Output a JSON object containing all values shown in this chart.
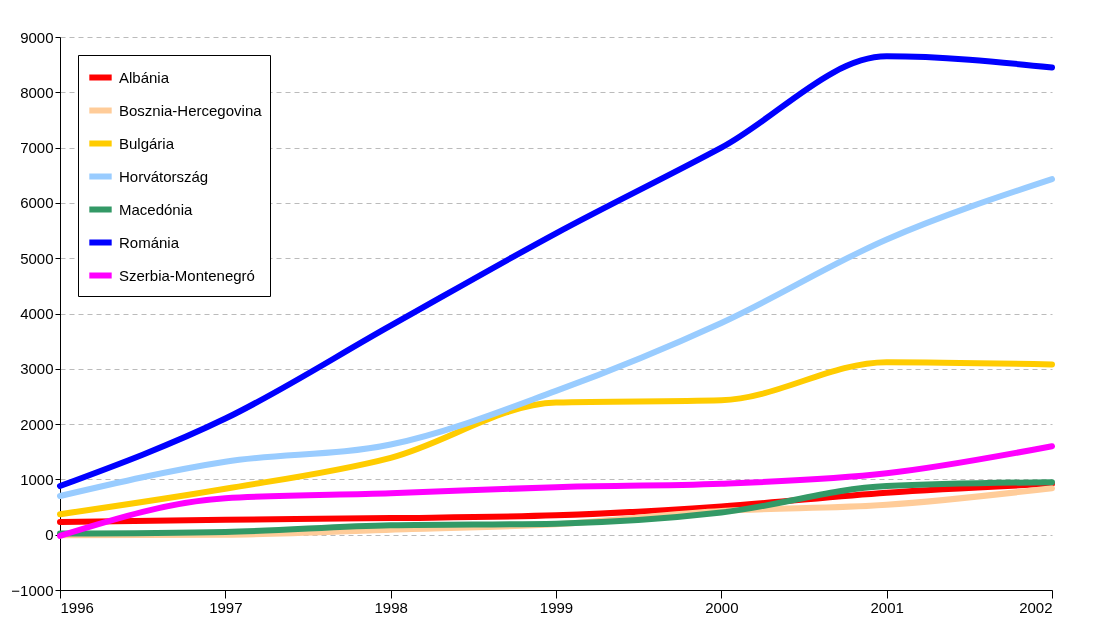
{
  "chart_data": {
    "type": "line",
    "x": [
      1996,
      1997,
      1998,
      1999,
      2000,
      2001,
      2002
    ],
    "xlim": [
      1996,
      2002
    ],
    "xticks": [
      1996,
      1997,
      1998,
      1999,
      2000,
      2001,
      2002
    ],
    "ylim": [
      -1000,
      9000
    ],
    "yticks": [
      -1000,
      0,
      1000,
      2000,
      3000,
      4000,
      5000,
      6000,
      7000,
      8000,
      9000
    ],
    "grid": "y",
    "legend": "top left",
    "line_style": "solid",
    "series": [
      {
        "name": "Albánia",
        "color": "#ff0000",
        "values": [
          230,
          270,
          300,
          350,
          510,
          760,
          920
        ]
      },
      {
        "name": "Bosznia-Hercegovina",
        "color": "#ffcc99",
        "values": [
          -10,
          0,
          90,
          190,
          430,
          540,
          840
        ]
      },
      {
        "name": "Bulgária",
        "color": "#ffcc00",
        "values": [
          370,
          830,
          1390,
          2390,
          2430,
          3120,
          3080
        ]
      },
      {
        "name": "Horvátország",
        "color": "#99ccff",
        "values": [
          700,
          1320,
          1630,
          2600,
          3830,
          5340,
          6430
        ]
      },
      {
        "name": "Macedónia",
        "color": "#339966",
        "values": [
          20,
          50,
          170,
          200,
          400,
          880,
          950
        ]
      },
      {
        "name": "Románia",
        "color": "#0000ff",
        "values": [
          880,
          2100,
          3780,
          5450,
          7000,
          8650,
          8450
        ]
      },
      {
        "name": "Szerbia-Montenegró",
        "color": "#ff00ff",
        "values": [
          -20,
          660,
          750,
          860,
          920,
          1110,
          1600
        ]
      }
    ]
  }
}
